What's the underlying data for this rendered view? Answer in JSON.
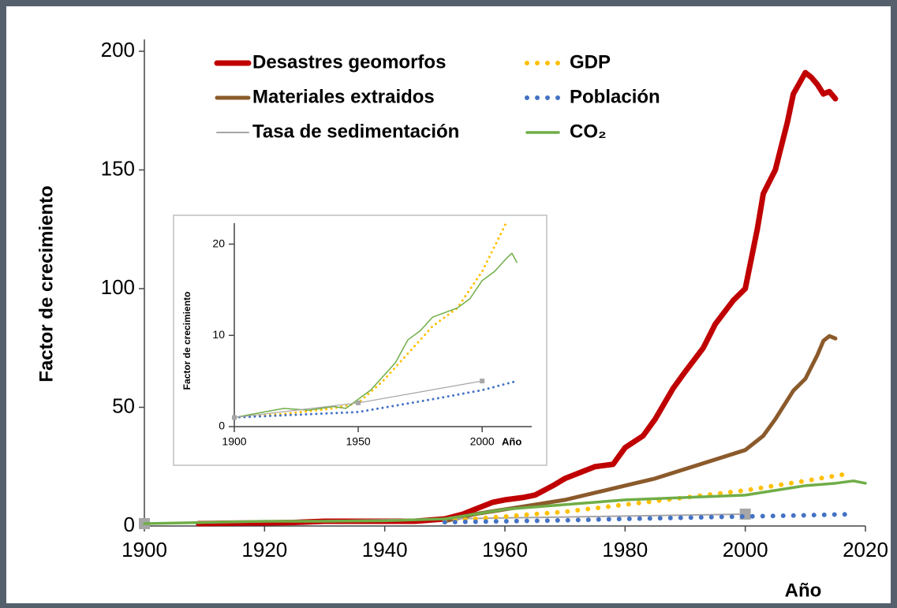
{
  "chart_data": [
    {
      "type": "line",
      "x_label": "Año",
      "y_label": "Factor de crecimiento",
      "xlim": [
        1900,
        2020
      ],
      "ylim": [
        0,
        200
      ],
      "xticks": [
        1900,
        1920,
        1940,
        1960,
        1980,
        2000,
        2020
      ],
      "yticks": [
        0,
        50,
        100,
        150,
        200
      ],
      "legend": "top",
      "series": [
        {
          "name": "Desastres geomorfos",
          "color": "#c00000",
          "line_style": "solid",
          "x": [
            1909,
            1915,
            1920,
            1925,
            1930,
            1935,
            1940,
            1945,
            1950,
            1953,
            1955,
            1958,
            1960,
            1963,
            1965,
            1968,
            1970,
            1973,
            1975,
            1978,
            1980,
            1983,
            1985,
            1988,
            1990,
            1993,
            1995,
            1998,
            2000,
            2002,
            2003,
            2005,
            2007,
            2008,
            2010,
            2011,
            2012,
            2013,
            2014,
            2015
          ],
          "values": [
            1,
            1.2,
            1.3,
            1.5,
            2,
            2,
            2,
            2,
            3,
            5,
            7,
            10,
            11,
            12,
            13,
            17,
            20,
            23,
            25,
            26,
            33,
            38,
            45,
            58,
            65,
            75,
            85,
            95,
            100,
            125,
            140,
            150,
            170,
            182,
            191,
            189,
            186,
            182,
            183,
            180
          ]
        },
        {
          "name": "Materiales extraidos",
          "color": "#8b5a2b",
          "line_style": "solid",
          "x": [
            1950,
            1955,
            1960,
            1965,
            1970,
            1975,
            1980,
            1985,
            1990,
            1995,
            2000,
            2003,
            2005,
            2008,
            2010,
            2012,
            2013,
            2014,
            2015
          ],
          "values": [
            2,
            5,
            7,
            9,
            11,
            14,
            17,
            20,
            24,
            28,
            32,
            38,
            45,
            57,
            62,
            72,
            78,
            80,
            79
          ]
        },
        {
          "name": "Tasa de sedimentación",
          "color": "#a6a6a6",
          "line_style": "solid",
          "marker": "square",
          "x": [
            1900,
            2000
          ],
          "values": [
            1,
            5
          ]
        },
        {
          "name": "GDP",
          "color": "#ffc000",
          "line_style": "dotted",
          "x": [
            1950,
            1960,
            1970,
            1980,
            1990,
            2000,
            2010,
            2017
          ],
          "values": [
            2,
            4,
            6,
            9,
            12,
            15,
            19,
            22
          ]
        },
        {
          "name": "Población",
          "color": "#4472c4",
          "line_style": "dotted",
          "x": [
            1950,
            1960,
            1970,
            1980,
            1990,
            2000,
            2010,
            2018
          ],
          "values": [
            1.6,
            2,
            2.4,
            3,
            3.5,
            4,
            4.5,
            5
          ]
        },
        {
          "name": "CO₂",
          "color": "#70ad47",
          "line_style": "solid",
          "x": [
            1900,
            1910,
            1920,
            1930,
            1940,
            1950,
            1955,
            1960,
            1970,
            1980,
            1990,
            2000,
            2010,
            2015,
            2018,
            2020
          ],
          "values": [
            1,
            1.5,
            2,
            2,
            2.2,
            3,
            5,
            7,
            9,
            11,
            12,
            13,
            17,
            18,
            19,
            18
          ]
        }
      ]
    },
    {
      "type": "line",
      "x_label": "Año",
      "y_label": "Factor de crecimiento",
      "xlim": [
        1900,
        2020
      ],
      "ylim": [
        0,
        21
      ],
      "xticks": [
        1900,
        1950,
        2000
      ],
      "yticks": [
        0,
        10,
        20
      ],
      "series": [
        {
          "color": "#ffc000",
          "line_style": "dotted",
          "x": [
            1900,
            1920,
            1940,
            1950,
            1960,
            1970,
            1980,
            1990,
            2000,
            2010
          ],
          "values": [
            1,
            1.4,
            2,
            2.6,
            5,
            8,
            11,
            13,
            17,
            22.5
          ]
        },
        {
          "color": "#70ad47",
          "line_style": "solid",
          "x": [
            1900,
            1910,
            1920,
            1930,
            1940,
            1945,
            1950,
            1955,
            1960,
            1965,
            1970,
            1975,
            1980,
            1985,
            1990,
            1995,
            2000,
            2005,
            2010,
            2012,
            2014
          ],
          "values": [
            1,
            1.5,
            2,
            1.8,
            2.2,
            2,
            3,
            4,
            5.5,
            7,
            9.5,
            10.5,
            12,
            12.5,
            13,
            14,
            16,
            17,
            18.5,
            19,
            18
          ]
        },
        {
          "color": "#4472c4",
          "line_style": "dotted",
          "x": [
            1900,
            1950,
            1980,
            2000,
            2014
          ],
          "values": [
            1,
            1.6,
            3,
            4,
            5
          ]
        },
        {
          "color": "#a6a6a6",
          "line_style": "solid",
          "marker": "square",
          "x": [
            1900,
            1950,
            2000
          ],
          "values": [
            1,
            2.6,
            5
          ]
        }
      ]
    }
  ]
}
